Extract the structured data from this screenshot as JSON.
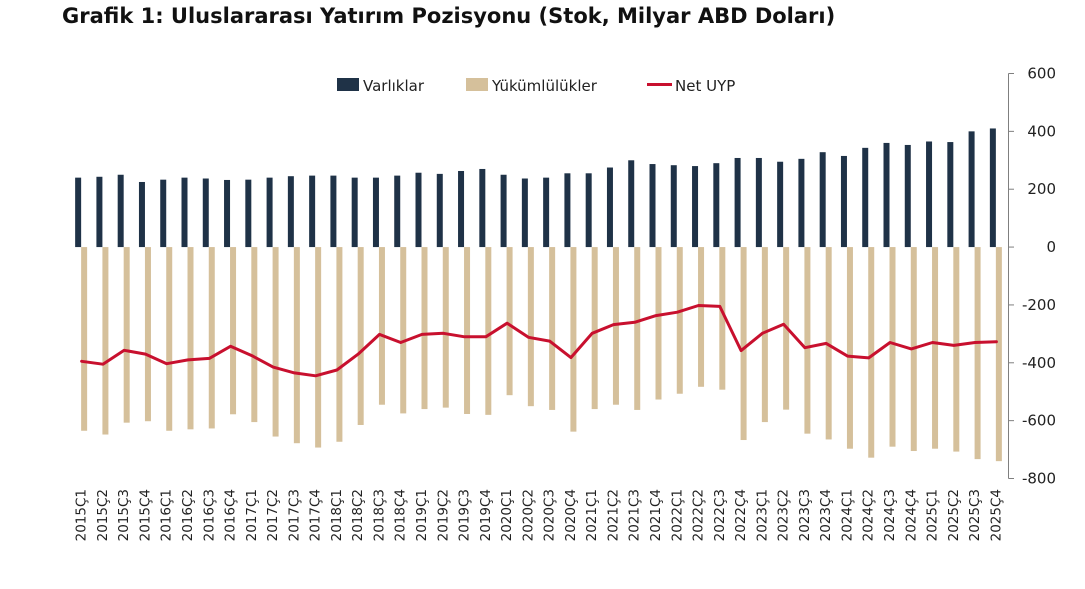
{
  "title": "Grafik 1: Uluslararası Yatırım Pozisyonu (Stok, Milyar ABD Doları)",
  "colors": {
    "assets": "#1f3247",
    "liabilities": "#d5c09b",
    "net": "#c8102e",
    "axis": "#7f7f7f"
  },
  "chart_data": {
    "type": "bar",
    "title": "Grafik 1: Uluslararası Yatırım Pozisyonu (Stok, Milyar ABD Doları)",
    "ylim": [
      -800,
      600
    ],
    "yticks": [
      600,
      400,
      200,
      0,
      -200,
      -400,
      -600,
      -800
    ],
    "y_axis_position": "right",
    "legend_position": "top",
    "grid": false,
    "categories": [
      "2015Ç1",
      "2015Ç2",
      "2015Ç3",
      "2015Ç4",
      "2016Ç1",
      "2016Ç2",
      "2016Ç3",
      "2016Ç4",
      "2017Ç1",
      "2017Ç2",
      "2017Ç3",
      "2017Ç4",
      "2018Ç1",
      "2018Ç2",
      "2018Ç3",
      "2018Ç4",
      "2019Ç1",
      "2019Ç2",
      "2019Ç3",
      "2019Ç4",
      "2020Ç1",
      "2020Ç2",
      "2020Ç3",
      "2020Ç4",
      "2021Ç1",
      "2021Ç2",
      "2021Ç3",
      "2021Ç4",
      "2022Ç1",
      "2022Ç2",
      "2022Ç3",
      "2022Ç4",
      "2023Ç1",
      "2023Ç2",
      "2023Ç3",
      "2023Ç4",
      "2024Ç1",
      "2024Ç2",
      "2024Ç3",
      "2024Ç4",
      "2025Ç1",
      "2025Ç2",
      "2025Ç3",
      "2025Ç4"
    ],
    "series": [
      {
        "name": "Varlıklar",
        "type": "bar",
        "values": [
          240,
          243,
          250,
          225,
          233,
          240,
          237,
          232,
          233,
          240,
          245,
          247,
          247,
          240,
          240,
          247,
          257,
          253,
          263,
          270,
          250,
          237,
          240,
          255,
          255,
          275,
          300,
          287,
          283,
          280,
          290,
          308,
          308,
          295,
          305,
          328,
          315,
          343,
          360,
          353,
          365,
          363,
          400,
          410
        ]
      },
      {
        "name": "Yükümlülükler",
        "type": "bar",
        "values": [
          -635,
          -648,
          -607,
          -602,
          -635,
          -630,
          -627,
          -578,
          -605,
          -655,
          -678,
          -693,
          -673,
          -615,
          -545,
          -575,
          -560,
          -555,
          -577,
          -580,
          -512,
          -550,
          -563,
          -638,
          -560,
          -545,
          -563,
          -527,
          -507,
          -483,
          -493,
          -667,
          -605,
          -562,
          -645,
          -665,
          -697,
          -728,
          -690,
          -705,
          -697,
          -707,
          -733,
          -740
        ]
      },
      {
        "name": "Net UYP",
        "type": "line",
        "values": [
          -395,
          -405,
          -357,
          -370,
          -403,
          -390,
          -385,
          -343,
          -375,
          -415,
          -435,
          -445,
          -425,
          -370,
          -302,
          -330,
          -302,
          -298,
          -310,
          -310,
          -263,
          -312,
          -325,
          -382,
          -298,
          -268,
          -260,
          -237,
          -225,
          -202,
          -205,
          -358,
          -298,
          -267,
          -348,
          -333,
          -377,
          -383,
          -330,
          -352,
          -330,
          -340,
          -330,
          -327
        ]
      }
    ]
  }
}
